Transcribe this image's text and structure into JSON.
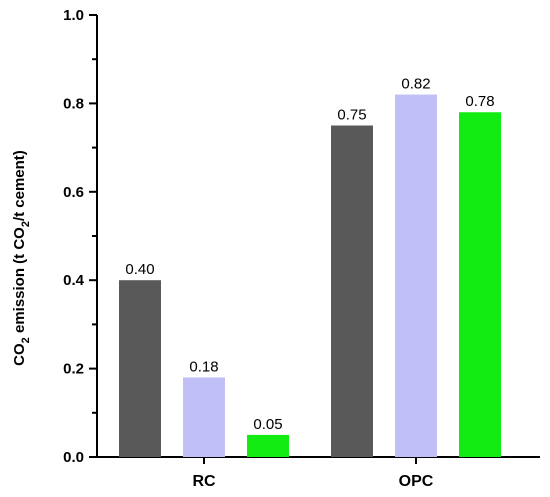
{
  "chart_data": {
    "type": "bar",
    "title": "",
    "categories": [
      "RC",
      "OPC"
    ],
    "series": [
      {
        "color": "#595959",
        "values": [
          0.4,
          0.75
        ]
      },
      {
        "color": "#c0c0f6",
        "values": [
          0.18,
          0.82
        ]
      },
      {
        "color": "#13ec13",
        "values": [
          0.05,
          0.78
        ]
      }
    ],
    "data_labels": [
      [
        "0.40",
        "0.75"
      ],
      [
        "0.18",
        "0.82"
      ],
      [
        "0.05",
        "0.78"
      ]
    ],
    "ylabel": {
      "base": "CO",
      "sub": "2",
      "mid": " emission (t CO",
      "sub2": "2",
      "end": "/t cement)"
    },
    "xlabel": "",
    "ylim": [
      0,
      1.0
    ],
    "yticks": [
      "0.0",
      "0.2",
      "0.4",
      "0.6",
      "0.8",
      "1.0"
    ],
    "minor_ticks_between": 1,
    "grid": false,
    "legend": "none"
  }
}
